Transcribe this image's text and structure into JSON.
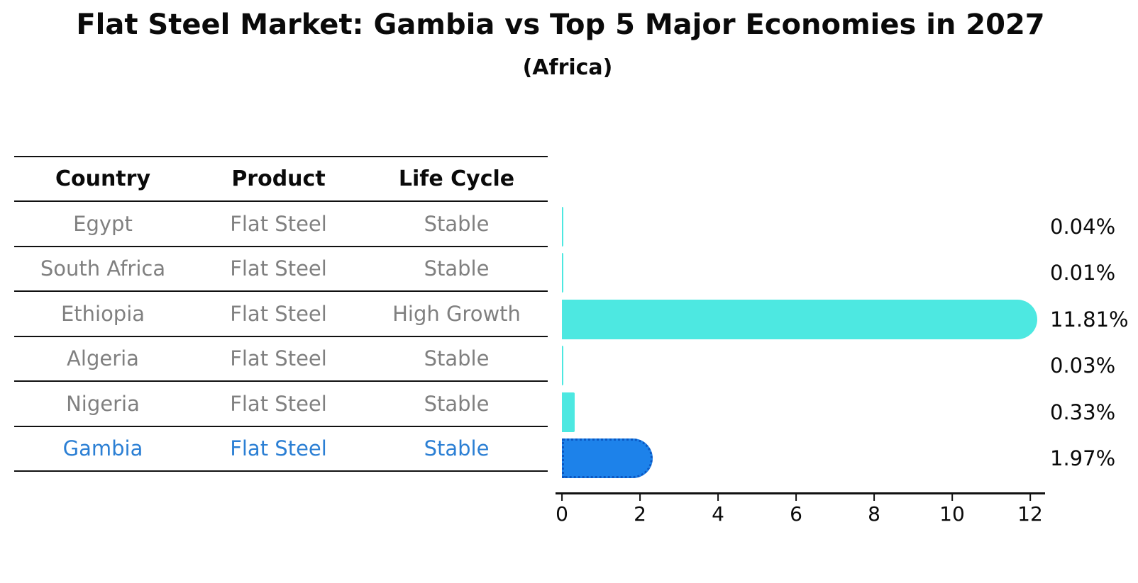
{
  "title": "Flat Steel Market: Gambia vs Top 5 Major Economies in 2027",
  "subtitle": "(Africa)",
  "table": {
    "headers": [
      "Country",
      "Product",
      "Life Cycle"
    ],
    "rows": [
      {
        "country": "Egypt",
        "product": "Flat Steel",
        "life_cycle": "Stable",
        "highlight": false
      },
      {
        "country": "South Africa",
        "product": "Flat Steel",
        "life_cycle": "Stable",
        "highlight": false
      },
      {
        "country": "Ethiopia",
        "product": "Flat Steel",
        "life_cycle": "High Growth",
        "highlight": false
      },
      {
        "country": "Algeria",
        "product": "Flat Steel",
        "life_cycle": "Stable",
        "highlight": false
      },
      {
        "country": "Nigeria",
        "product": "Flat Steel",
        "life_cycle": "Stable",
        "highlight": false
      },
      {
        "country": "Gambia",
        "product": "Flat Steel",
        "life_cycle": "Stable",
        "highlight": true
      }
    ]
  },
  "chart_data": {
    "type": "bar",
    "orientation": "horizontal",
    "title": "Flat Steel Market: Gambia vs Top 5 Major Economies in 2027",
    "subtitle": "(Africa)",
    "categories": [
      "Egypt",
      "South Africa",
      "Ethiopia",
      "Algeria",
      "Nigeria",
      "Gambia"
    ],
    "values": [
      0.04,
      0.01,
      11.81,
      0.03,
      0.33,
      1.97
    ],
    "labels": [
      "0.04%",
      "0.01%",
      "11.81%",
      "0.03%",
      "0.33%",
      "1.97%"
    ],
    "xlabel": "",
    "ylabel": "",
    "xlim": [
      0,
      12
    ],
    "xticks": [
      0,
      2,
      4,
      6,
      8,
      10,
      12
    ],
    "grid": false,
    "legend": "none",
    "highlight_index": 5,
    "colors": {
      "default_bar": "#4DE8E1",
      "highlight_bar": "#1D82EA",
      "highlight_border": "#0B57C2",
      "highlight_text": "#2B7FD4",
      "row_text": "#808080",
      "header_text": "#0A0A0A",
      "axis": "#111111"
    }
  }
}
